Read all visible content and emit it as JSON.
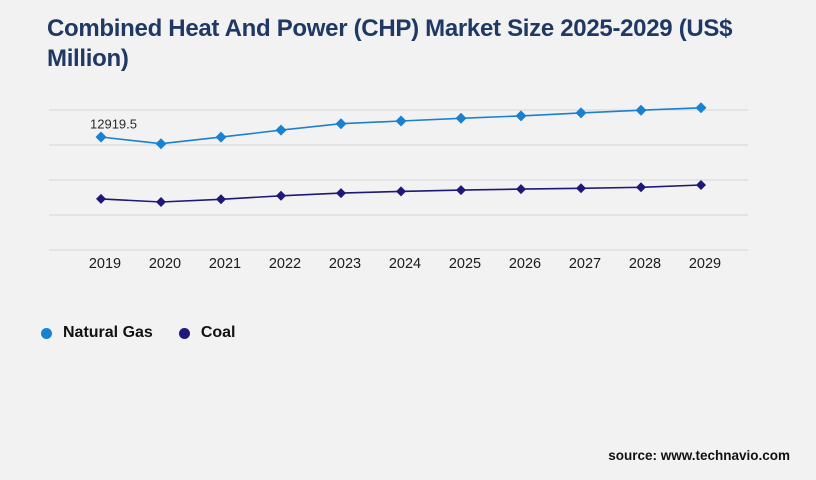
{
  "page": {
    "background_color": "#f2f2f3",
    "title": "Combined Heat And Power (CHP) Market Size 2025-2029 (US$ Million)",
    "title_color": "#1f3864",
    "source": "source: www.technavio.com"
  },
  "chart_data": {
    "type": "line",
    "title": "Combined Heat And Power (CHP) Market Size 2025-2029 (US$ Million)",
    "xlabel": "",
    "ylabel": "",
    "categories": [
      "2019",
      "2020",
      "2021",
      "2022",
      "2023",
      "2024",
      "2025",
      "2026",
      "2027",
      "2028",
      "2029"
    ],
    "series": [
      {
        "name": "Natural Gas",
        "color": "#1a80d0",
        "marker": "diamond",
        "values": [
          12919.5,
          12150,
          12900,
          13700,
          14430,
          14740,
          15050,
          15320,
          15670,
          15980,
          16250
        ]
      },
      {
        "name": "Coal",
        "color": "#1e1878",
        "marker": "diamond",
        "values": [
          5840,
          5490,
          5800,
          6190,
          6500,
          6700,
          6850,
          6960,
          7050,
          7160,
          7430
        ]
      }
    ],
    "data_labels": [
      {
        "series": "Natural Gas",
        "category": "2019",
        "text": "12919.5"
      }
    ],
    "ylim": [
      0,
      16000
    ],
    "gridline_values": [
      0,
      4000,
      8000,
      12000,
      16000
    ],
    "gridline_color": "#d7d7d8",
    "grid": "horizontal-only",
    "y_axis_labels_visible": false,
    "legend_position": "bottom-left"
  }
}
